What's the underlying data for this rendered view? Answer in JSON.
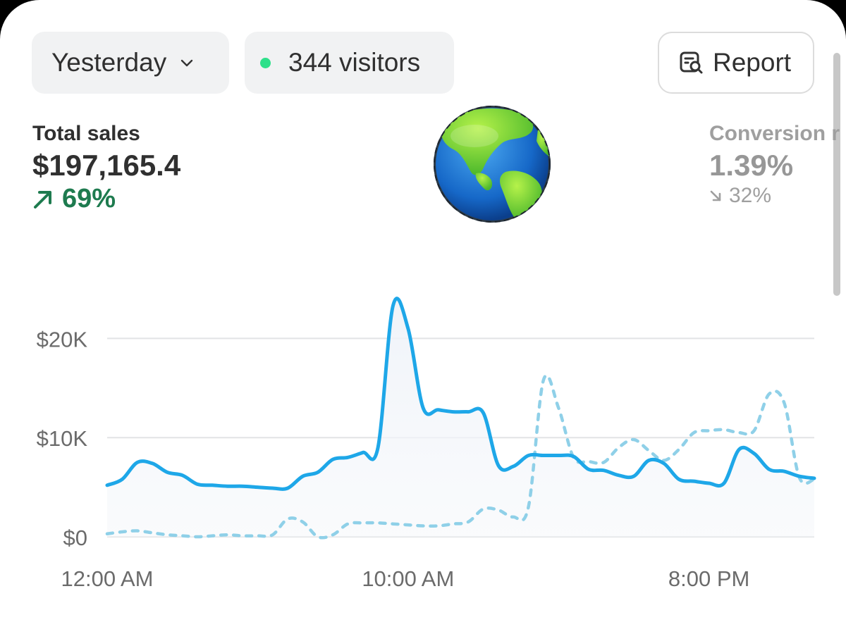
{
  "filters": {
    "date_range": "Yesterday",
    "visitors": "344 visitors",
    "report_label": "Report"
  },
  "metrics": {
    "total_sales": {
      "label": "Total sales",
      "value": "$197,165.4",
      "change": "69%",
      "direction": "up"
    },
    "conversion_rate": {
      "label": "Conversion r",
      "value": "1.39%",
      "change": "32%",
      "direction": "down"
    }
  },
  "colors": {
    "primary_line": "#1ea7e8",
    "comparison_line": "#8fd0e8",
    "positive": "#1e7b4f",
    "live_dot": "#2ee08a"
  },
  "icons": {
    "date_dropdown": "chevron-down-icon",
    "report": "report-search-icon",
    "up": "arrow-up-right-icon",
    "down": "arrow-down-right-icon",
    "decoration": "globe-emoji"
  },
  "chart_data": {
    "type": "line",
    "x_ticks": [
      "12:00 AM",
      "10:00 AM",
      "8:00 PM"
    ],
    "y_ticks": [
      "$0",
      "$10K",
      "$20K"
    ],
    "ylim": [
      0,
      25000
    ],
    "grid": true,
    "x": [
      0,
      0.5,
      1,
      1.5,
      2,
      2.5,
      3,
      3.5,
      4,
      4.5,
      5,
      5.5,
      6,
      6.5,
      7,
      7.5,
      8,
      8.5,
      9,
      9.5,
      10,
      10.5,
      11,
      11.5,
      12,
      12.5,
      13,
      13.5,
      14,
      14.5,
      15,
      15.5,
      16,
      16.5,
      17,
      17.5,
      18,
      18.5,
      19,
      19.5,
      20,
      20.5,
      21,
      21.5,
      22,
      22.5,
      23,
      23.5
    ],
    "series": [
      {
        "style": "solid",
        "values": [
          5200,
          5800,
          7500,
          7400,
          6500,
          6200,
          5300,
          5200,
          5100,
          5100,
          5000,
          4900,
          4900,
          6100,
          6500,
          7800,
          8000,
          8500,
          9000,
          23300,
          21000,
          13000,
          12800,
          12600,
          12600,
          12500,
          7200,
          7100,
          8200,
          8200,
          8200,
          8100,
          6800,
          6700,
          6200,
          6100,
          7700,
          7400,
          5800,
          5600,
          5400,
          5400,
          8800,
          8400,
          6800,
          6600,
          6100,
          5900
        ]
      },
      {
        "style": "dashed",
        "values": [
          300,
          500,
          600,
          400,
          200,
          100,
          0,
          100,
          200,
          100,
          100,
          200,
          1800,
          1500,
          0,
          200,
          1300,
          1400,
          1400,
          1300,
          1200,
          1100,
          1100,
          1300,
          1500,
          2800,
          2700,
          2000,
          3000,
          15800,
          13000,
          8000,
          7600,
          7500,
          9000,
          9800,
          8700,
          7700,
          8800,
          10500,
          10700,
          10800,
          10500,
          10700,
          14400,
          13500,
          6000,
          5800
        ]
      }
    ]
  }
}
